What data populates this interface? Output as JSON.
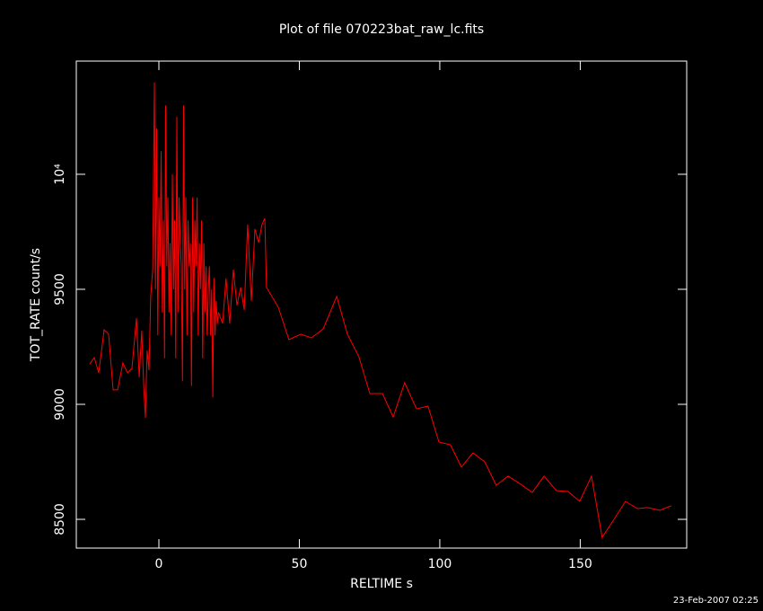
{
  "chart_data": {
    "type": "line",
    "title": "Plot of file 070223bat_raw_lc.fits",
    "x_label": "RELTIME  s",
    "y_label": "TOT_RATE  count/s",
    "footer": "23-Feb-2007 02:25",
    "xlim": [
      -29.4,
      187.9
    ],
    "ylim": [
      8375,
      10492
    ],
    "xticks": [
      0,
      50,
      100,
      150
    ],
    "yticks": [
      8500,
      9000,
      9500,
      {
        "value": 10000,
        "label": "10⁴"
      }
    ],
    "series": [
      {
        "color": "#ff0000",
        "x": [
          -24.6,
          -23,
          -21.4,
          -19.5,
          -17.9,
          -16.3,
          -14.7,
          -12.8,
          -11.2,
          -9.6,
          -8,
          -7,
          -6.1,
          -5.4,
          -4.8,
          -4.2,
          -3.5,
          -2.9,
          -2.2,
          -1.6,
          -1.2,
          -0.8,
          -0.4,
          0,
          0.4,
          0.8,
          1.2,
          1.6,
          2,
          2.4,
          2.8,
          3.2,
          3.6,
          4,
          4.4,
          4.8,
          5.2,
          5.6,
          6,
          6.4,
          6.8,
          7.2,
          7.6,
          8,
          8.4,
          8.8,
          9.2,
          9.6,
          10,
          10.4,
          10.8,
          11.2,
          11.6,
          12,
          12.4,
          12.8,
          13.2,
          13.6,
          14,
          14.4,
          14.8,
          15.2,
          15.6,
          16,
          16.4,
          16.8,
          17.2,
          17.6,
          18,
          18.4,
          18.8,
          19.2,
          19.6,
          20,
          20.4,
          20.8,
          21.2,
          22.7,
          23.9,
          25.2,
          26.5,
          27.8,
          29.1,
          30.4,
          31.6,
          32.9,
          34.2,
          35.5,
          36.7,
          37.7,
          38.3,
          42.5,
          46.3,
          50.5,
          54.3,
          58.5,
          63.3,
          67.1,
          71.2,
          75.1,
          79.6,
          83.4,
          87.5,
          91.7,
          95.8,
          99.7,
          103.8,
          107.7,
          111.8,
          116,
          120.1,
          124.3,
          128.4,
          132.9,
          137.1,
          141.5,
          145.7,
          149.8,
          154,
          157.8,
          162,
          166.1,
          170.3,
          174.1,
          178.3,
          182.4
        ],
        "values": [
          9176,
          9203,
          9137,
          9324,
          9305,
          9063,
          9063,
          9180,
          9137,
          9156,
          9375,
          9117,
          9320,
          9078,
          8941,
          9234,
          9148,
          9469,
          9586,
          10400,
          9500,
          10200,
          9300,
          9900,
          9600,
          10100,
          9400,
          9800,
          9200,
          10300,
          9600,
          9900,
          9400,
          9700,
          9300,
          10000,
          9500,
          9800,
          9200,
          10250,
          9400,
          9900,
          9700,
          9600,
          9100,
          10300,
          9500,
          9900,
          9300,
          9800,
          9600,
          9700,
          9080,
          9900,
          9400,
          9800,
          9600,
          9900,
          9300,
          9700,
          9500,
          9800,
          9200,
          9700,
          9400,
          9600,
          9300,
          9500,
          9600,
          9300,
          9500,
          9030,
          9550,
          9300,
          9450,
          9350,
          9400,
          9352,
          9547,
          9352,
          9586,
          9430,
          9508,
          9410,
          9781,
          9449,
          9762,
          9703,
          9781,
          9809,
          9508,
          9422,
          9281,
          9305,
          9289,
          9328,
          9469,
          9305,
          9207,
          9047,
          9047,
          8945,
          9094,
          8980,
          8992,
          8836,
          8824,
          8727,
          8789,
          8750,
          8648,
          8688,
          8656,
          8617,
          8688,
          8625,
          8621,
          8578,
          8688,
          8422,
          8500,
          8578,
          8547,
          8551,
          8539,
          8559
        ]
      }
    ]
  }
}
